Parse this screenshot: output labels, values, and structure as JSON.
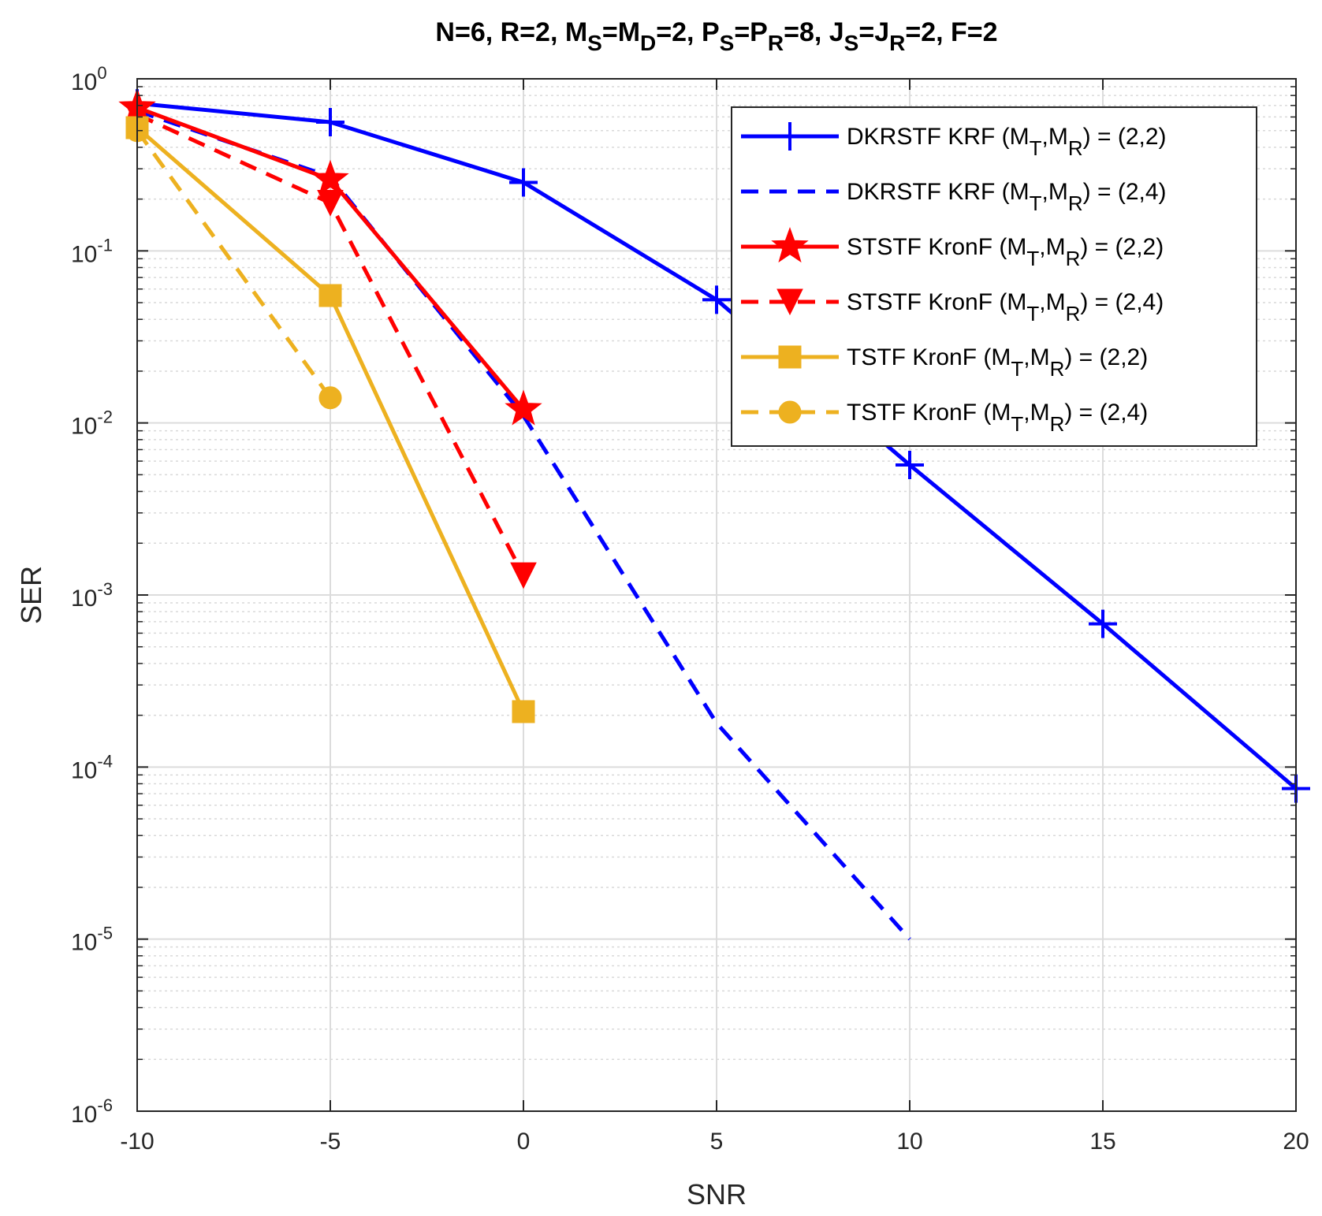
{
  "chart_data": {
    "type": "line",
    "title_parts": [
      {
        "t": "N=6,  R=2,  M"
      },
      {
        "t": "S",
        "sub": true
      },
      {
        "t": "=M"
      },
      {
        "t": "D",
        "sub": true
      },
      {
        "t": "=2,  P"
      },
      {
        "t": "S",
        "sub": true
      },
      {
        "t": "=P"
      },
      {
        "t": "R",
        "sub": true
      },
      {
        "t": "=8,  J"
      },
      {
        "t": "S",
        "sub": true
      },
      {
        "t": "=J"
      },
      {
        "t": "R",
        "sub": true
      },
      {
        "t": "=2,  F=2"
      }
    ],
    "xlabel": "SNR",
    "ylabel": "SER",
    "xlim": [
      -10,
      20
    ],
    "ylim": [
      1e-06,
      1
    ],
    "yscale": "log",
    "grid": true,
    "minor_grid": true,
    "legend_position": "top-right",
    "x_ticks": [
      {
        "value": -10,
        "label": "-10"
      },
      {
        "value": -5,
        "label": "-5"
      },
      {
        "value": 0,
        "label": "0"
      },
      {
        "value": 5,
        "label": "5"
      },
      {
        "value": 10,
        "label": "10"
      },
      {
        "value": 15,
        "label": "15"
      },
      {
        "value": 20,
        "label": "20"
      }
    ],
    "y_ticks": [
      {
        "value": 1,
        "base": "10",
        "exp": "0"
      },
      {
        "value": 0.1,
        "base": "10",
        "exp": "-1"
      },
      {
        "value": 0.01,
        "base": "10",
        "exp": "-2"
      },
      {
        "value": 0.001,
        "base": "10",
        "exp": "-3"
      },
      {
        "value": 0.0001,
        "base": "10",
        "exp": "-4"
      },
      {
        "value": 1e-05,
        "base": "10",
        "exp": "-5"
      },
      {
        "value": 1e-06,
        "base": "10",
        "exp": "-6"
      }
    ],
    "series": [
      {
        "name": "DKRSTF KRF (M_T,M_R) = (2,2)",
        "name_main": "DKRSTF KRF (M",
        "name_sub1": "T",
        "name_mid": ",M",
        "name_sub2": "R",
        "name_end": ") = (2,2)",
        "color": "#0000ff",
        "dash": "solid",
        "marker": "plus",
        "x": [
          -10,
          -5,
          0,
          5,
          10,
          15,
          20
        ],
        "y": [
          0.72,
          0.56,
          0.25,
          0.052,
          0.0057,
          0.00068,
          7.5e-05
        ]
      },
      {
        "name": "DKRSTF KRF (M_T,M_R) = (2,4)",
        "name_main": "DKRSTF KRF (M",
        "name_sub1": "T",
        "name_mid": ",M",
        "name_sub2": "R",
        "name_end": ") = (2,4)",
        "color": "#0000ff",
        "dash": "dashed",
        "marker": "none",
        "x": [
          -10,
          -5,
          0,
          5,
          10
        ],
        "y": [
          0.65,
          0.27,
          0.011,
          0.00018,
          1e-05
        ]
      },
      {
        "name": "STSTF KronF (M_T,M_R) = (2,2)",
        "name_main": "STSTF KronF (M",
        "name_sub1": "T",
        "name_mid": ",M",
        "name_sub2": "R",
        "name_end": ") = (2,2)",
        "color": "#ff0000",
        "dash": "solid",
        "marker": "star",
        "x": [
          -10,
          -5,
          0
        ],
        "y": [
          0.68,
          0.26,
          0.012
        ]
      },
      {
        "name": "STSTF KronF (M_T,M_R) = (2,4)",
        "name_main": "STSTF KronF (M",
        "name_sub1": "T",
        "name_mid": ",M",
        "name_sub2": "R",
        "name_end": ") = (2,4)",
        "color": "#ff0000",
        "dash": "dashed",
        "marker": "triangle-down",
        "x": [
          -10,
          -5,
          0
        ],
        "y": [
          0.62,
          0.19,
          0.0013
        ]
      },
      {
        "name": "TSTF KronF (M_T,M_R) = (2,2)",
        "name_main": "TSTF KronF (M",
        "name_sub1": "T",
        "name_mid": ",M",
        "name_sub2": "R",
        "name_end": ") = (2,2)",
        "color": "#edb120",
        "dash": "solid",
        "marker": "square",
        "x": [
          -10,
          -5,
          0
        ],
        "y": [
          0.52,
          0.055,
          0.00021
        ]
      },
      {
        "name": "TSTF KronF (M_T,M_R) = (2,4)",
        "name_main": "TSTF KronF (M",
        "name_sub1": "T",
        "name_mid": ",M",
        "name_sub2": "R",
        "name_end": ") = (2,4)",
        "color": "#edb120",
        "dash": "dashed",
        "marker": "circle",
        "x": [
          -10,
          -5
        ],
        "y": [
          0.5,
          0.014
        ]
      }
    ]
  }
}
